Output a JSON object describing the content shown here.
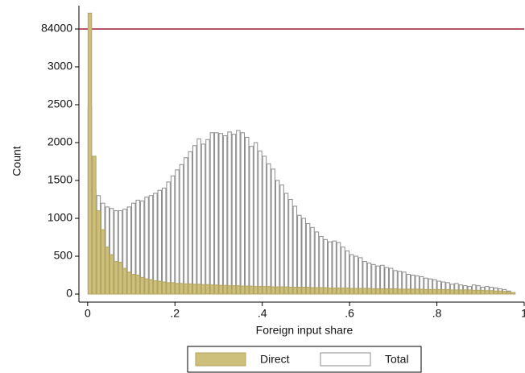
{
  "chart_data": {
    "type": "histogram",
    "xlabel": "Foreign input share",
    "ylabel": "Count",
    "bins": [
      0,
      0.01,
      0.02,
      0.03,
      0.04,
      0.05,
      0.06,
      0.07,
      0.08,
      0.09,
      0.1,
      0.11,
      0.12,
      0.13,
      0.14,
      0.15,
      0.16,
      0.17,
      0.18,
      0.19,
      0.2,
      0.21,
      0.22,
      0.23,
      0.24,
      0.25,
      0.26,
      0.27,
      0.28,
      0.29,
      0.3,
      0.31,
      0.32,
      0.33,
      0.34,
      0.35,
      0.36,
      0.37,
      0.38,
      0.39,
      0.4,
      0.41,
      0.42,
      0.43,
      0.44,
      0.45,
      0.46,
      0.47,
      0.48,
      0.49,
      0.5,
      0.51,
      0.52,
      0.53,
      0.54,
      0.55,
      0.56,
      0.57,
      0.58,
      0.59,
      0.6,
      0.61,
      0.62,
      0.63,
      0.64,
      0.65,
      0.66,
      0.67,
      0.68,
      0.69,
      0.7,
      0.71,
      0.72,
      0.73,
      0.74,
      0.75,
      0.76,
      0.77,
      0.78,
      0.79,
      0.8,
      0.81,
      0.82,
      0.83,
      0.84,
      0.85,
      0.86,
      0.87,
      0.88,
      0.89,
      0.9,
      0.91,
      0.92,
      0.93,
      0.94,
      0.95,
      0.96,
      0.97,
      0.98
    ],
    "series": [
      {
        "name": "Total",
        "color": "#ffffff",
        "edgecolor": "#8c8c8c",
        "values": [
          2480,
          1380,
          1300,
          1200,
          1150,
          1130,
          1100,
          1100,
          1120,
          1150,
          1200,
          1240,
          1230,
          1280,
          1300,
          1330,
          1370,
          1400,
          1480,
          1560,
          1640,
          1710,
          1800,
          1880,
          1960,
          2050,
          1980,
          2040,
          2130,
          2130,
          2120,
          2090,
          2140,
          2110,
          2160,
          2130,
          2070,
          1950,
          2000,
          1890,
          1820,
          1720,
          1650,
          1500,
          1440,
          1330,
          1250,
          1160,
          1040,
          1000,
          930,
          880,
          820,
          760,
          720,
          690,
          700,
          680,
          620,
          570,
          520,
          500,
          480,
          430,
          410,
          390,
          370,
          380,
          350,
          340,
          310,
          300,
          290,
          260,
          250,
          240,
          230,
          210,
          200,
          190,
          170,
          160,
          150,
          130,
          140,
          120,
          110,
          100,
          120,
          110,
          90,
          100,
          90,
          80,
          70,
          60,
          40,
          20
        ]
      },
      {
        "name": "Direct",
        "color": "#cdc07c",
        "edgecolor": "#b3a55e",
        "values": [
          118000,
          1820,
          1100,
          850,
          620,
          520,
          430,
          420,
          340,
          290,
          260,
          250,
          220,
          200,
          190,
          175,
          170,
          160,
          150,
          150,
          140,
          140,
          135,
          135,
          130,
          130,
          125,
          125,
          120,
          120,
          115,
          115,
          110,
          110,
          110,
          105,
          105,
          105,
          100,
          100,
          100,
          100,
          95,
          95,
          95,
          95,
          90,
          90,
          90,
          90,
          90,
          85,
          85,
          85,
          85,
          80,
          80,
          80,
          80,
          80,
          75,
          75,
          75,
          75,
          75,
          70,
          70,
          70,
          70,
          70,
          70,
          65,
          65,
          65,
          65,
          65,
          65,
          60,
          60,
          60,
          60,
          60,
          60,
          55,
          55,
          55,
          55,
          55,
          50,
          50,
          50,
          45,
          45,
          40,
          40,
          35,
          30,
          20
        ]
      }
    ],
    "xlim": [
      -0.02,
      1.0
    ],
    "xticks": [
      0,
      {
        "value": 0.2,
        "label": ".2"
      },
      {
        "value": 0.4,
        "label": ".4"
      },
      {
        "value": 0.6,
        "label": ".6"
      },
      {
        "value": 0.8,
        "label": ".8"
      },
      1
    ],
    "ylim": [
      0,
      134000
    ],
    "yticks": [
      0,
      500,
      1000,
      1500,
      2000,
      2500,
      3000,
      84000
    ],
    "axis_break": true,
    "legend": "bottom"
  }
}
